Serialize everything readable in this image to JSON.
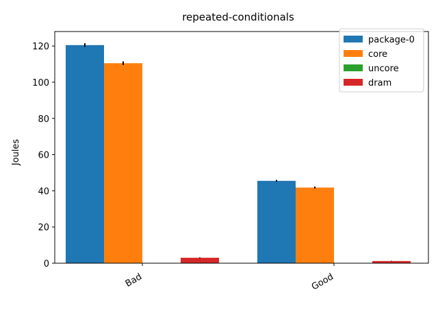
{
  "chart_data": {
    "type": "bar",
    "title": "repeated-conditionals",
    "xlabel": "",
    "ylabel": "Joules",
    "categories": [
      "Bad",
      "Good"
    ],
    "series": [
      {
        "name": "package-0",
        "values": [
          120.5,
          45.5
        ],
        "errors": [
          1.0,
          0.5
        ],
        "color": "#1f77b4"
      },
      {
        "name": "core",
        "values": [
          110.5,
          41.8
        ],
        "errors": [
          1.0,
          0.5
        ],
        "color": "#ff7f0e"
      },
      {
        "name": "uncore",
        "values": [
          0,
          0
        ],
        "errors": [
          0,
          0
        ],
        "color": "#2ca02c"
      },
      {
        "name": "dram",
        "values": [
          3.0,
          1.2
        ],
        "errors": [
          0.2,
          0.1
        ],
        "color": "#d62728"
      }
    ],
    "ylim": [
      0,
      128
    ],
    "yticks": [
      0,
      20,
      40,
      60,
      80,
      100,
      120
    ],
    "grid": false,
    "legend_position": "top-right"
  }
}
